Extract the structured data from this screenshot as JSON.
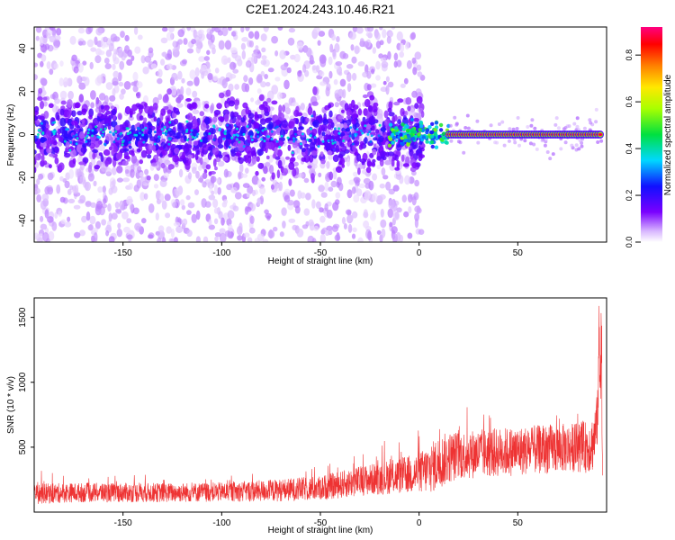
{
  "figure": {
    "title": "C2E1.2024.243.10.46.R21"
  },
  "chart_data": [
    {
      "type": "heatmap",
      "xlabel": "Height of straight line (km)",
      "ylabel": "Frequency (Hz)",
      "xlim": [
        -195,
        95
      ],
      "ylim": [
        -50,
        50
      ],
      "x_ticks": [
        -150,
        -100,
        -50,
        0,
        50
      ],
      "y_ticks": [
        -40,
        -20,
        0,
        20,
        40
      ],
      "colorbar": {
        "label": "Normalized spectral amplitude",
        "range": [
          0,
          0.92
        ],
        "ticks": [
          0.0,
          0.2,
          0.4,
          0.6,
          0.8
        ],
        "colormap": "rainbow: white at 0, violet, blue, cyan, green, yellow, orange, red, magenta at max"
      },
      "regions": [
        {
          "x_range": [
            -195,
            0
          ],
          "description": "broadband noise, amplitude mostly 0.05-0.25, concentrated within about ±10 Hz of 0 Hz, scattered faint points up to ±50 Hz"
        },
        {
          "x_range": [
            0,
            15
          ],
          "description": "transition, emerging narrow line near 0 Hz with amplitude up to about 0.5"
        },
        {
          "x_range": [
            15,
            92
          ],
          "description": "narrow strong line at about 0 Hz (±1-2 Hz), amplitude about 0.85-0.9"
        }
      ]
    },
    {
      "type": "line",
      "xlabel": "Height of straight line (km)",
      "ylabel": "SNR (10 * v/v)",
      "xlim": [
        -195,
        95
      ],
      "ylim": [
        0,
        1650
      ],
      "x_ticks": [
        -150,
        -100,
        -50,
        0,
        50
      ],
      "y_ticks": [
        500,
        1000,
        1500
      ],
      "series": [
        {
          "color": "#ee3333",
          "x": [
            -195,
            -175,
            -150,
            -125,
            -100,
            -75,
            -50,
            -40,
            -30,
            -20,
            -10,
            0,
            5,
            10,
            15,
            20,
            30,
            40,
            50,
            60,
            70,
            80,
            85,
            88,
            90,
            92,
            93
          ],
          "y": [
            140,
            150,
            150,
            150,
            155,
            165,
            185,
            210,
            240,
            260,
            280,
            300,
            330,
            380,
            420,
            440,
            450,
            460,
            470,
            480,
            490,
            500,
            500,
            530,
            650,
            1400,
            200
          ],
          "noise_amplitude": [
            80,
            75,
            75,
            75,
            75,
            85,
            95,
            105,
            115,
            125,
            140,
            160,
            190,
            210,
            200,
            190,
            190,
            190,
            190,
            190,
            190,
            190,
            200,
            220,
            240,
            200,
            100
          ]
        }
      ]
    }
  ]
}
